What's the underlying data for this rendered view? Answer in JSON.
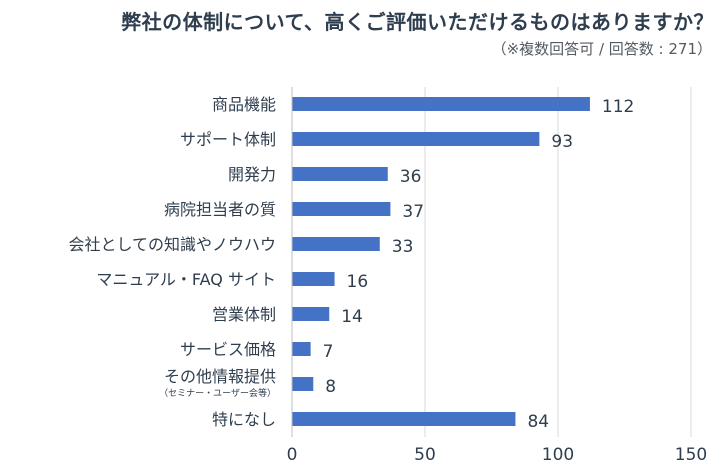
{
  "title": "弊社の体制について、高くご評価いただけるものはありますか？",
  "subtitle": "（※複数回答可 / 回答数 : 271）",
  "chart_data": {
    "type": "bar",
    "orientation": "horizontal",
    "categories": [
      "商品機能",
      "サポート体制",
      "開発力",
      "病院担当者の質",
      "会社としての知識やノウハウ",
      "マニュアル・FAQ サイト",
      "営業体制",
      "サービス価格",
      "その他情報提供",
      "特になし"
    ],
    "category_notes": [
      "",
      "",
      "",
      "",
      "",
      "",
      "",
      "",
      "（セミナー・ユーザー会等）",
      ""
    ],
    "values": [
      112,
      93,
      36,
      37,
      33,
      16,
      14,
      7,
      8,
      84
    ],
    "xlim": [
      0,
      150
    ],
    "xticks": [
      0,
      50,
      100,
      150
    ],
    "grid": true,
    "bar_color": "#4472c4",
    "grid_color": "#d9d9d9"
  }
}
